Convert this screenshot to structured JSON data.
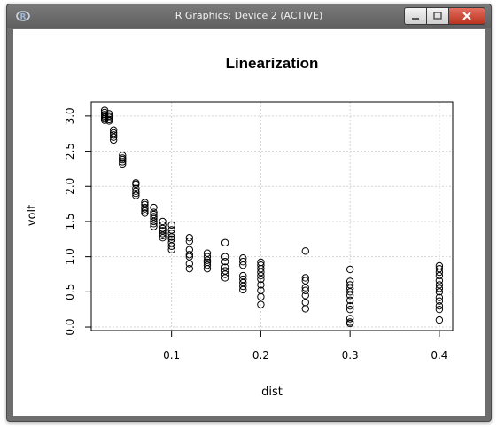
{
  "window": {
    "title": "R Graphics: Device 2 (ACTIVE)",
    "app_icon": "r-logo-icon",
    "controls": {
      "minimize": "minimize-icon",
      "maximize": "maximize-icon",
      "close": "close-icon"
    }
  },
  "chart_data": {
    "type": "scatter",
    "title": "Linearization",
    "xlabel": "dist",
    "ylabel": "volt",
    "xlim": [
      0.01,
      0.415
    ],
    "ylim": [
      -0.05,
      3.2
    ],
    "x_ticks": [
      "0.1",
      "0.2",
      "0.3",
      "0.4"
    ],
    "y_ticks": [
      "0.0",
      "0.5",
      "1.0",
      "1.5",
      "2.0",
      "2.5",
      "3.0"
    ],
    "grid": true,
    "marker": "open circle",
    "points": [
      [
        0.025,
        3.08
      ],
      [
        0.025,
        3.05
      ],
      [
        0.025,
        3.02
      ],
      [
        0.025,
        3.0
      ],
      [
        0.025,
        2.98
      ],
      [
        0.025,
        2.96
      ],
      [
        0.025,
        2.94
      ],
      [
        0.03,
        3.03
      ],
      [
        0.03,
        3.0
      ],
      [
        0.03,
        2.98
      ],
      [
        0.03,
        2.95
      ],
      [
        0.03,
        2.93
      ],
      [
        0.035,
        2.8
      ],
      [
        0.035,
        2.76
      ],
      [
        0.035,
        2.73
      ],
      [
        0.035,
        2.7
      ],
      [
        0.035,
        2.66
      ],
      [
        0.045,
        2.44
      ],
      [
        0.045,
        2.4
      ],
      [
        0.045,
        2.38
      ],
      [
        0.045,
        2.35
      ],
      [
        0.045,
        2.32
      ],
      [
        0.06,
        2.05
      ],
      [
        0.06,
        2.03
      ],
      [
        0.06,
        1.97
      ],
      [
        0.06,
        1.93
      ],
      [
        0.06,
        1.9
      ],
      [
        0.06,
        1.87
      ],
      [
        0.07,
        1.77
      ],
      [
        0.07,
        1.74
      ],
      [
        0.07,
        1.7
      ],
      [
        0.07,
        1.68
      ],
      [
        0.07,
        1.65
      ],
      [
        0.07,
        1.62
      ],
      [
        0.08,
        1.7
      ],
      [
        0.08,
        1.63
      ],
      [
        0.08,
        1.6
      ],
      [
        0.08,
        1.57
      ],
      [
        0.08,
        1.54
      ],
      [
        0.08,
        1.5
      ],
      [
        0.08,
        1.47
      ],
      [
        0.08,
        1.43
      ],
      [
        0.09,
        1.5
      ],
      [
        0.09,
        1.45
      ],
      [
        0.09,
        1.4
      ],
      [
        0.09,
        1.37
      ],
      [
        0.09,
        1.33
      ],
      [
        0.09,
        1.3
      ],
      [
        0.09,
        1.27
      ],
      [
        0.1,
        1.45
      ],
      [
        0.1,
        1.38
      ],
      [
        0.1,
        1.33
      ],
      [
        0.1,
        1.28
      ],
      [
        0.1,
        1.25
      ],
      [
        0.1,
        1.2
      ],
      [
        0.1,
        1.15
      ],
      [
        0.1,
        1.1
      ],
      [
        0.12,
        1.27
      ],
      [
        0.12,
        1.22
      ],
      [
        0.12,
        1.1
      ],
      [
        0.12,
        1.03
      ],
      [
        0.12,
        1.0
      ],
      [
        0.12,
        0.9
      ],
      [
        0.12,
        0.83
      ],
      [
        0.14,
        1.05
      ],
      [
        0.14,
        1.0
      ],
      [
        0.14,
        0.95
      ],
      [
        0.14,
        0.92
      ],
      [
        0.14,
        0.88
      ],
      [
        0.14,
        0.83
      ],
      [
        0.16,
        1.2
      ],
      [
        0.16,
        1.0
      ],
      [
        0.16,
        0.93
      ],
      [
        0.16,
        0.85
      ],
      [
        0.16,
        0.8
      ],
      [
        0.16,
        0.75
      ],
      [
        0.16,
        0.7
      ],
      [
        0.18,
        0.98
      ],
      [
        0.18,
        0.93
      ],
      [
        0.18,
        0.88
      ],
      [
        0.18,
        0.73
      ],
      [
        0.18,
        0.68
      ],
      [
        0.18,
        0.63
      ],
      [
        0.18,
        0.58
      ],
      [
        0.18,
        0.53
      ],
      [
        0.2,
        0.92
      ],
      [
        0.2,
        0.88
      ],
      [
        0.2,
        0.83
      ],
      [
        0.2,
        0.78
      ],
      [
        0.2,
        0.73
      ],
      [
        0.2,
        0.68
      ],
      [
        0.2,
        0.6
      ],
      [
        0.2,
        0.52
      ],
      [
        0.2,
        0.43
      ],
      [
        0.2,
        0.32
      ],
      [
        0.25,
        1.08
      ],
      [
        0.25,
        0.7
      ],
      [
        0.25,
        0.66
      ],
      [
        0.25,
        0.56
      ],
      [
        0.25,
        0.52
      ],
      [
        0.25,
        0.45
      ],
      [
        0.25,
        0.35
      ],
      [
        0.25,
        0.26
      ],
      [
        0.3,
        0.82
      ],
      [
        0.3,
        0.65
      ],
      [
        0.3,
        0.6
      ],
      [
        0.3,
        0.55
      ],
      [
        0.3,
        0.5
      ],
      [
        0.3,
        0.45
      ],
      [
        0.3,
        0.38
      ],
      [
        0.3,
        0.3
      ],
      [
        0.3,
        0.25
      ],
      [
        0.3,
        0.12
      ],
      [
        0.3,
        0.07
      ],
      [
        0.3,
        0.05
      ],
      [
        0.4,
        0.87
      ],
      [
        0.4,
        0.83
      ],
      [
        0.4,
        0.78
      ],
      [
        0.4,
        0.73
      ],
      [
        0.4,
        0.66
      ],
      [
        0.4,
        0.6
      ],
      [
        0.4,
        0.55
      ],
      [
        0.4,
        0.5
      ],
      [
        0.4,
        0.42
      ],
      [
        0.4,
        0.37
      ],
      [
        0.4,
        0.3
      ],
      [
        0.4,
        0.25
      ],
      [
        0.4,
        0.1
      ]
    ]
  }
}
